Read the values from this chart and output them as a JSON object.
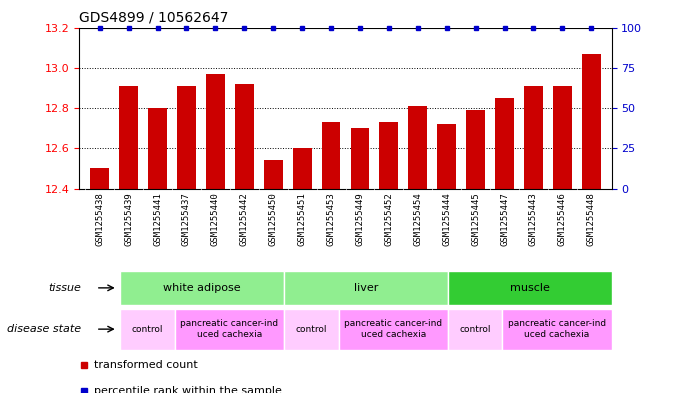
{
  "title": "GDS4899 / 10562647",
  "samples": [
    "GSM1255438",
    "GSM1255439",
    "GSM1255441",
    "GSM1255437",
    "GSM1255440",
    "GSM1255442",
    "GSM1255450",
    "GSM1255451",
    "GSM1255453",
    "GSM1255449",
    "GSM1255452",
    "GSM1255454",
    "GSM1255444",
    "GSM1255445",
    "GSM1255447",
    "GSM1255443",
    "GSM1255446",
    "GSM1255448"
  ],
  "transformed_count": [
    12.5,
    12.91,
    12.8,
    12.91,
    12.97,
    12.92,
    12.54,
    12.6,
    12.73,
    12.7,
    12.73,
    12.81,
    12.72,
    12.79,
    12.85,
    12.91,
    12.91,
    13.07
  ],
  "percentile_rank": [
    100,
    100,
    100,
    100,
    100,
    100,
    100,
    100,
    100,
    100,
    100,
    100,
    100,
    100,
    100,
    100,
    100,
    100
  ],
  "bar_color": "#cc0000",
  "dot_color": "#0000cc",
  "ylim_left": [
    12.4,
    13.2
  ],
  "ylim_right": [
    0,
    100
  ],
  "yticks_left": [
    12.4,
    12.6,
    12.8,
    13.0,
    13.2
  ],
  "yticks_right": [
    0,
    25,
    50,
    75,
    100
  ],
  "tissue_groups": [
    {
      "label": "white adipose",
      "start": 0,
      "end": 6,
      "color": "#90ee90"
    },
    {
      "label": "liver",
      "start": 6,
      "end": 12,
      "color": "#90ee90"
    },
    {
      "label": "muscle",
      "start": 12,
      "end": 18,
      "color": "#33cc33"
    }
  ],
  "disease_groups": [
    {
      "label": "control",
      "start": 0,
      "end": 2,
      "color": "#ffccff"
    },
    {
      "label": "pancreatic cancer-ind\nuced cachexia",
      "start": 2,
      "end": 6,
      "color": "#ff99ff"
    },
    {
      "label": "control",
      "start": 6,
      "end": 8,
      "color": "#ffccff"
    },
    {
      "label": "pancreatic cancer-ind\nuced cachexia",
      "start": 8,
      "end": 12,
      "color": "#ff99ff"
    },
    {
      "label": "control",
      "start": 12,
      "end": 14,
      "color": "#ffccff"
    },
    {
      "label": "pancreatic cancer-ind\nuced cachexia",
      "start": 14,
      "end": 18,
      "color": "#ff99ff"
    }
  ],
  "tissue_label": "tissue",
  "disease_label": "disease state",
  "legend_items": [
    {
      "label": "transformed count",
      "color": "#cc0000"
    },
    {
      "label": "percentile rank within the sample",
      "color": "#0000cc"
    }
  ],
  "xtick_bg_color": "#cccccc",
  "bar_width": 0.65
}
